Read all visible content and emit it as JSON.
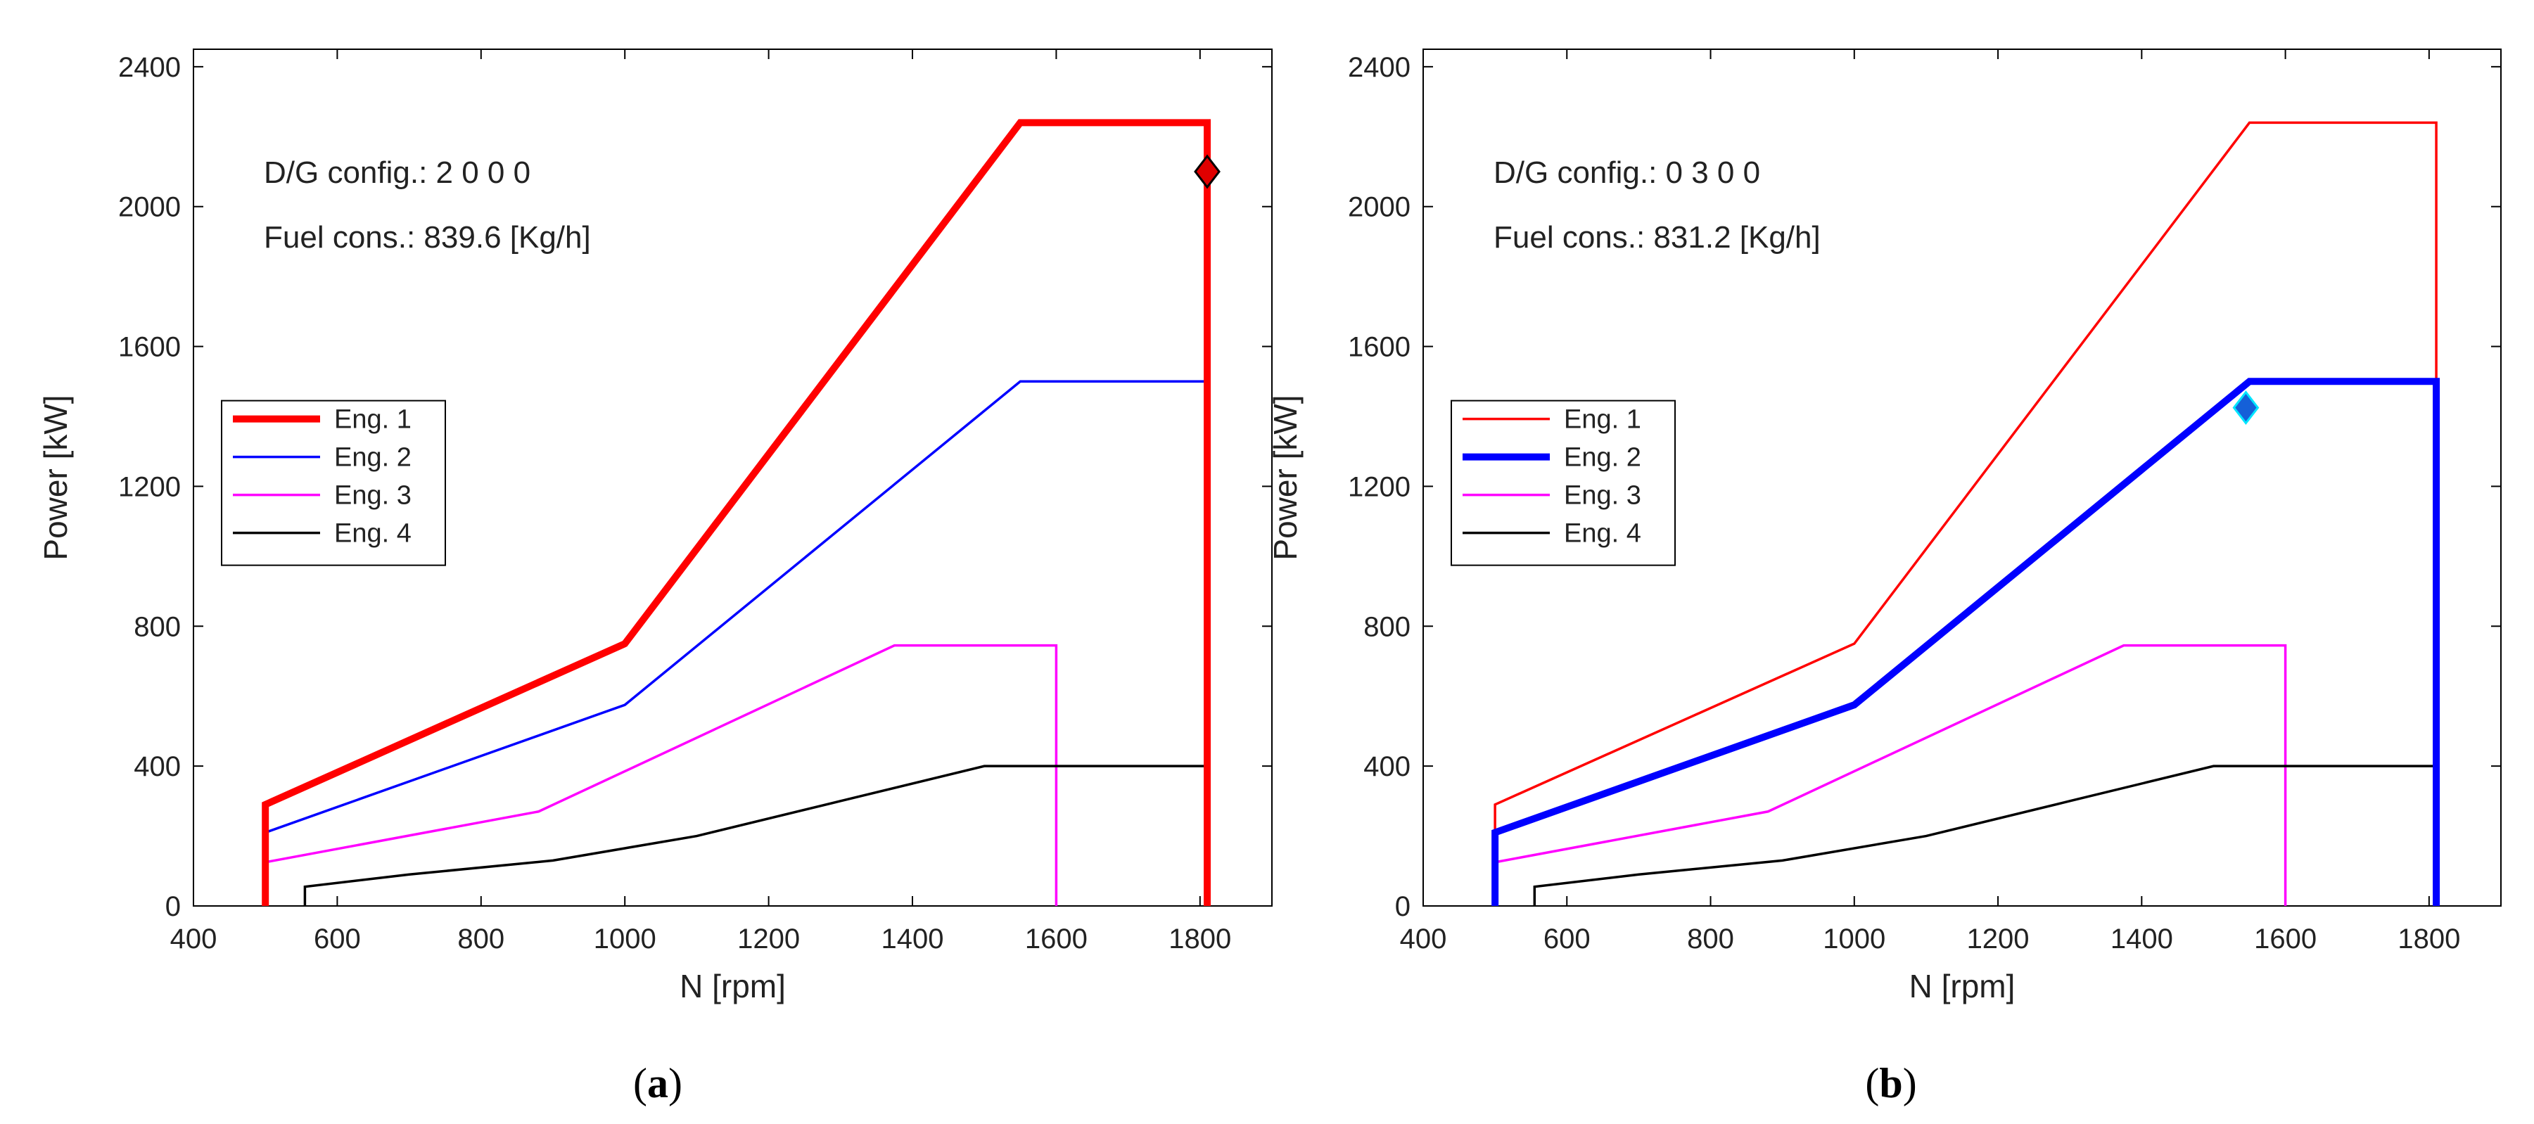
{
  "chart_data": [
    {
      "type": "line",
      "panel_label": "a",
      "xlabel": "N [rpm]",
      "ylabel": "Power [kW]",
      "xlim": [
        400,
        1900
      ],
      "ylim": [
        0,
        2450
      ],
      "xticks": [
        "400",
        "600",
        "800",
        "1000",
        "1200",
        "1400",
        "1600",
        "1800"
      ],
      "yticks": [
        "0",
        "400",
        "800",
        "1200",
        "1600",
        "2000",
        "2400"
      ],
      "annotations": [
        "D/G config.: 2  0  0  0",
        "Fuel cons.: 839.6 [Kg/h]"
      ],
      "legend": {
        "position": "middle-left",
        "entries": [
          "Eng. 1",
          "Eng. 2",
          "Eng. 3",
          "Eng. 4"
        ]
      },
      "highlighted_series": "Eng. 1",
      "operating_point": {
        "x": 1810,
        "y": 2100,
        "marker": "diamond",
        "color": "#e00000"
      },
      "series": [
        {
          "name": "Eng. 1",
          "color": "#ff0000",
          "bold": true,
          "x": [
            500,
            500,
            1000,
            1550,
            1810,
            1810
          ],
          "y": [
            0,
            290,
            750,
            2240,
            2240,
            0
          ]
        },
        {
          "name": "Eng. 2",
          "color": "#0000ff",
          "bold": false,
          "x": [
            500,
            500,
            1000,
            1550,
            1810,
            1810
          ],
          "y": [
            0,
            210,
            575,
            1500,
            1500,
            0
          ]
        },
        {
          "name": "Eng. 3",
          "color": "#ff00ff",
          "bold": false,
          "x": [
            500,
            500,
            880,
            1375,
            1600,
            1600
          ],
          "y": [
            0,
            125,
            270,
            745,
            745,
            0
          ]
        },
        {
          "name": "Eng. 4",
          "color": "#000000",
          "bold": false,
          "x": [
            555,
            555,
            700,
            900,
            1100,
            1300,
            1500,
            1810,
            1810
          ],
          "y": [
            0,
            55,
            90,
            130,
            200,
            300,
            400,
            400,
            0
          ]
        }
      ]
    },
    {
      "type": "line",
      "panel_label": "b",
      "xlabel": "N [rpm]",
      "ylabel": "Power [kW]",
      "xlim": [
        400,
        1900
      ],
      "ylim": [
        0,
        2450
      ],
      "xticks": [
        "400",
        "600",
        "800",
        "1000",
        "1200",
        "1400",
        "1600",
        "1800"
      ],
      "yticks": [
        "0",
        "400",
        "800",
        "1200",
        "1600",
        "2000",
        "2400"
      ],
      "annotations": [
        "D/G config.: 0  3  0  0",
        "Fuel cons.: 831.2 [Kg/h]"
      ],
      "legend": {
        "position": "middle-left",
        "entries": [
          "Eng. 1",
          "Eng. 2",
          "Eng. 3",
          "Eng. 4"
        ]
      },
      "highlighted_series": "Eng. 2",
      "operating_point": {
        "x": 1545,
        "y": 1425,
        "marker": "diamond",
        "color": "#1560d8"
      },
      "series": [
        {
          "name": "Eng. 1",
          "color": "#ff0000",
          "bold": false,
          "x": [
            500,
            500,
            1000,
            1550,
            1810,
            1810
          ],
          "y": [
            0,
            290,
            750,
            2240,
            2240,
            0
          ]
        },
        {
          "name": "Eng. 2",
          "color": "#0000ff",
          "bold": true,
          "x": [
            500,
            500,
            1000,
            1550,
            1810,
            1810
          ],
          "y": [
            0,
            210,
            575,
            1500,
            1500,
            0
          ]
        },
        {
          "name": "Eng. 3",
          "color": "#ff00ff",
          "bold": false,
          "x": [
            500,
            500,
            880,
            1375,
            1600,
            1600
          ],
          "y": [
            0,
            125,
            270,
            745,
            745,
            0
          ]
        },
        {
          "name": "Eng. 4",
          "color": "#000000",
          "bold": false,
          "x": [
            555,
            555,
            700,
            900,
            1100,
            1300,
            1500,
            1810,
            1810
          ],
          "y": [
            0,
            55,
            90,
            130,
            200,
            300,
            400,
            400,
            0
          ]
        }
      ]
    }
  ]
}
